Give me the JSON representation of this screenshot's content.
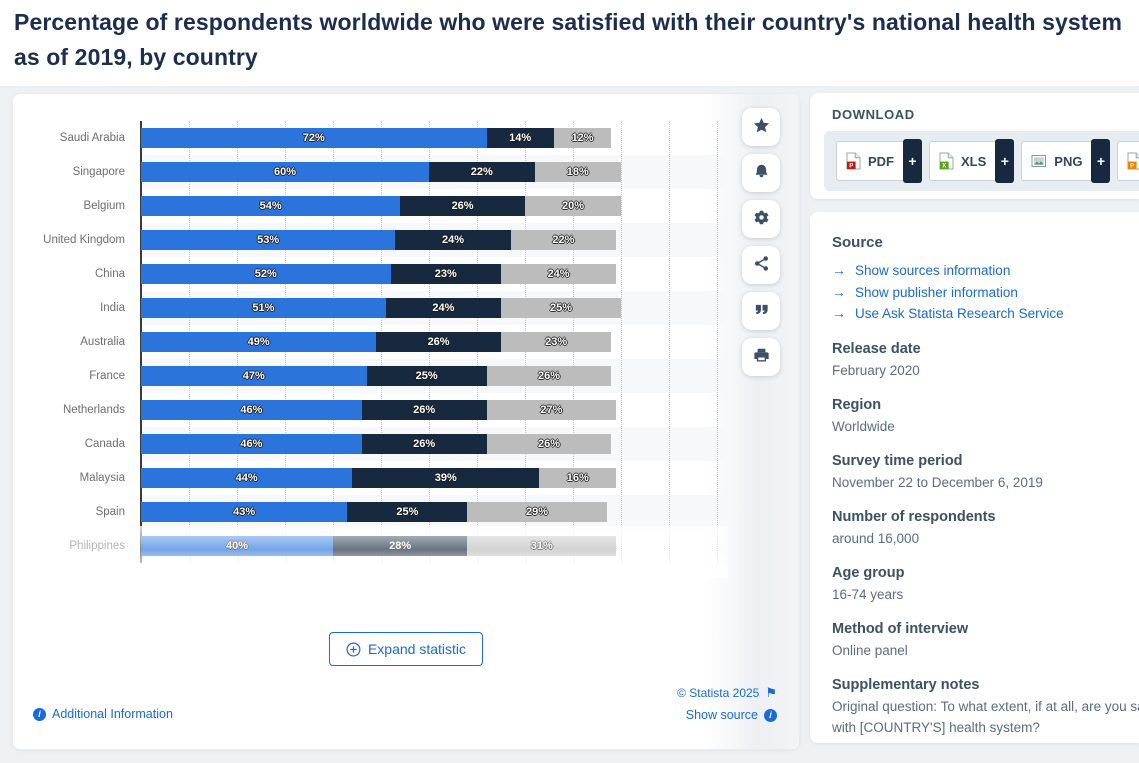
{
  "page": {
    "title": "Percentage of respondents worldwide who were satisfied with their country's national health system as of 2019, by country",
    "background_color": "#eef1f4",
    "accent_blue": "#1a6ad9",
    "title_color": "#1b2e4e"
  },
  "chart_data": {
    "type": "bar",
    "orientation": "horizontal_stacked",
    "title": "Percentage of respondents worldwide who were satisfied with their country's national health system as of 2019, by country",
    "unit": "%",
    "categories": [
      "Saudi Arabia",
      "Singapore",
      "Belgium",
      "United Kingdom",
      "China",
      "India",
      "Australia",
      "France",
      "Netherlands",
      "Canada",
      "Malaysia",
      "Spain",
      "Philippines"
    ],
    "series": [
      {
        "name": "segment-1-blue",
        "color": "#2b74dc",
        "values": [
          72,
          60,
          54,
          53,
          52,
          51,
          49,
          47,
          46,
          46,
          44,
          43,
          40
        ]
      },
      {
        "name": "segment-2-navy",
        "color": "#17293f",
        "values": [
          14,
          22,
          26,
          24,
          23,
          24,
          26,
          25,
          26,
          26,
          39,
          25,
          28
        ]
      },
      {
        "name": "segment-3-gray",
        "color": "#bcbcbc",
        "values": [
          12,
          18,
          20,
          22,
          24,
          25,
          23,
          26,
          27,
          26,
          16,
          29,
          31
        ]
      }
    ],
    "xlim": [
      0,
      120
    ],
    "gridline_step": 10,
    "grid": "vertical_dotted",
    "legend_position": "none",
    "last_row_faded": true,
    "stripe_color": "#f7f8f9"
  },
  "toolbar": {
    "icons": [
      "favorite-star",
      "notification-bell",
      "settings-gear",
      "share",
      "citation-quote",
      "print"
    ]
  },
  "chart_footer": {
    "expand_label": "Expand statistic",
    "copyright": "© Statista 2025",
    "additional_information": "Additional Information",
    "show_source": "Show source"
  },
  "download_panel": {
    "title": "DOWNLOAD",
    "plus_label": "+",
    "buttons": [
      {
        "label": "PDF",
        "type": "pdf",
        "color": "#c11a12"
      },
      {
        "label": "XLS",
        "type": "xls",
        "color": "#58a618"
      },
      {
        "label": "PNG",
        "type": "png",
        "color": "#4a90d9"
      },
      {
        "label": "PPT",
        "type": "ppt",
        "color": "#e8840c"
      }
    ]
  },
  "info_panel": {
    "source": {
      "title": "Source",
      "links": [
        "Show sources information",
        "Show publisher information",
        "Use Ask Statista Research Service"
      ]
    },
    "meta": [
      {
        "label": "Release date",
        "value": "February 2020"
      },
      {
        "label": "Region",
        "value": "Worldwide"
      },
      {
        "label": "Survey time period",
        "value": "November 22 to December 6, 2019"
      },
      {
        "label": "Number of respondents",
        "value": "around 16,000"
      },
      {
        "label": "Age group",
        "value": "16-74 years"
      },
      {
        "label": "Method of interview",
        "value": "Online panel"
      },
      {
        "label": "Supplementary notes",
        "value": "Original question: To what extent, if at all, are you satisfied with [COUNTRY'S] health system?"
      }
    ]
  }
}
